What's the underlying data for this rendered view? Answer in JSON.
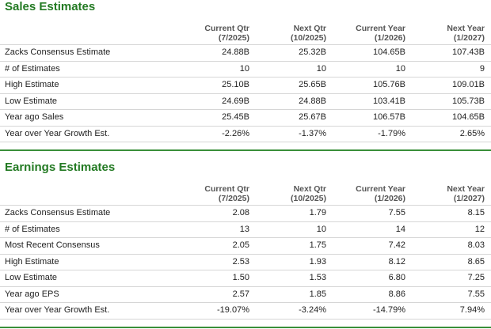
{
  "sections": [
    {
      "title": "Sales Estimates",
      "columns": [
        {
          "name": "Current Qtr",
          "period": "(7/2025)"
        },
        {
          "name": "Next Qtr",
          "period": "(10/2025)"
        },
        {
          "name": "Current Year",
          "period": "(1/2026)"
        },
        {
          "name": "Next Year",
          "period": "(1/2027)"
        }
      ],
      "rows": [
        [
          "Zacks Consensus Estimate",
          "24.88B",
          "25.32B",
          "104.65B",
          "107.43B"
        ],
        [
          "# of Estimates",
          "10",
          "10",
          "10",
          "9"
        ],
        [
          "High Estimate",
          "25.10B",
          "25.65B",
          "105.76B",
          "109.01B"
        ],
        [
          "Low Estimate",
          "24.69B",
          "24.88B",
          "103.41B",
          "105.73B"
        ],
        [
          "Year ago Sales",
          "25.45B",
          "25.67B",
          "106.57B",
          "104.65B"
        ],
        [
          "Year over Year Growth Est.",
          "-2.26%",
          "-1.37%",
          "-1.79%",
          "2.65%"
        ]
      ]
    },
    {
      "title": "Earnings Estimates",
      "columns": [
        {
          "name": "Current Qtr",
          "period": "(7/2025)"
        },
        {
          "name": "Next Qtr",
          "period": "(10/2025)"
        },
        {
          "name": "Current Year",
          "period": "(1/2026)"
        },
        {
          "name": "Next Year",
          "period": "(1/2027)"
        }
      ],
      "rows": [
        [
          "Zacks Consensus Estimate",
          "2.08",
          "1.79",
          "7.55",
          "8.15"
        ],
        [
          "# of Estimates",
          "13",
          "10",
          "14",
          "12"
        ],
        [
          "Most Recent Consensus",
          "2.05",
          "1.75",
          "7.42",
          "8.03"
        ],
        [
          "High Estimate",
          "2.53",
          "1.93",
          "8.12",
          "8.65"
        ],
        [
          "Low Estimate",
          "1.50",
          "1.53",
          "6.80",
          "7.25"
        ],
        [
          "Year ago EPS",
          "2.57",
          "1.85",
          "8.86",
          "7.55"
        ],
        [
          "Year over Year Growth Est.",
          "-19.07%",
          "-3.24%",
          "-14.79%",
          "7.94%"
        ]
      ]
    }
  ]
}
